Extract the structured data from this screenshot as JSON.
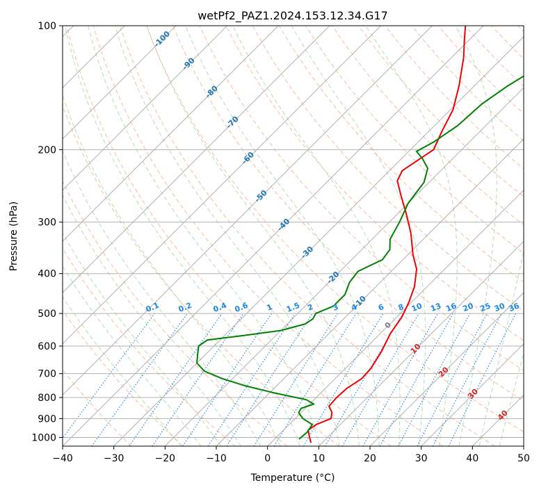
{
  "chart_data": {
    "type": "line",
    "title": "wetPf2_PAZ1.2024.153.12.34.G17",
    "xlabel": "Temperature (°C)",
    "ylabel": "Pressure (hPa)",
    "xlim": [
      -40,
      50
    ],
    "ylim": [
      1050,
      100
    ],
    "y_scale": "log",
    "grid": true,
    "x_ticks": [
      "−40",
      "−30",
      "−20",
      "−10",
      "0",
      "10",
      "20",
      "30",
      "40",
      "50"
    ],
    "y_ticks": [
      {
        "p": 100,
        "label": "100"
      },
      {
        "p": 200,
        "label": "200"
      },
      {
        "p": 300,
        "label": "300"
      },
      {
        "p": 400,
        "label": "400"
      },
      {
        "p": 500,
        "label": "500"
      },
      {
        "p": 600,
        "label": "600"
      },
      {
        "p": 700,
        "label": "700"
      },
      {
        "p": 800,
        "label": "800"
      },
      {
        "p": 900,
        "label": "900"
      },
      {
        "p": 1000,
        "label": "1000"
      }
    ],
    "isotherm_labels": [
      {
        "text": "-100",
        "t": -100,
        "p": 108
      },
      {
        "text": "-90",
        "t": -90,
        "p": 124
      },
      {
        "text": "-80",
        "t": -80,
        "p": 145
      },
      {
        "text": "-70",
        "t": -70,
        "p": 172
      },
      {
        "text": "-60",
        "t": -60,
        "p": 210
      },
      {
        "text": "-50",
        "t": -50,
        "p": 260
      },
      {
        "text": "-40",
        "t": -40,
        "p": 305
      },
      {
        "text": "-30",
        "t": -30,
        "p": 356
      },
      {
        "text": "-20",
        "t": -20,
        "p": 410
      },
      {
        "text": "-10",
        "t": -10,
        "p": 470
      },
      {
        "text": "0",
        "t": 0,
        "p": 535
      },
      {
        "text": "10",
        "t": 10,
        "p": 610
      },
      {
        "text": "20",
        "t": 20,
        "p": 695
      },
      {
        "text": "30",
        "t": 30,
        "p": 785
      },
      {
        "text": "40",
        "t": 40,
        "p": 885
      }
    ],
    "mixing_ratio_labels": [
      "0.1",
      "0.2",
      "0.4",
      "0.6",
      "1",
      "1.5",
      "2",
      "3",
      "4",
      "6",
      "8",
      "10",
      "13",
      "16",
      "20",
      "25",
      "30",
      "36"
    ],
    "colors": {
      "temperature": "#ee0000",
      "dewpoint": "#008000",
      "isotherm_label_cold": "#1f77b4",
      "isotherm_label_warm": "#d62728",
      "mixing_ratio": "#1e88e5",
      "dry_adiabat": "#f4a582",
      "moist_adiabat": "#a6d8a0"
    },
    "series": [
      {
        "values": [
          {
            "p": 1030,
            "t": 7.8
          },
          {
            "p": 1000,
            "t": 6.5
          },
          {
            "p": 960,
            "t": 4.8
          },
          {
            "p": 930,
            "t": 5.3
          },
          {
            "p": 900,
            "t": 7.0
          },
          {
            "p": 870,
            "t": 6.0
          },
          {
            "p": 840,
            "t": 4.2
          },
          {
            "p": 800,
            "t": 4.0
          },
          {
            "p": 760,
            "t": 4.2
          },
          {
            "p": 720,
            "t": 5.2
          },
          {
            "p": 680,
            "t": 5.0
          },
          {
            "p": 620,
            "t": 3.8
          },
          {
            "p": 560,
            "t": 2.0
          },
          {
            "p": 510,
            "t": 1.0
          },
          {
            "p": 470,
            "t": -0.5
          },
          {
            "p": 430,
            "t": -2.5
          },
          {
            "p": 390,
            "t": -5.5
          },
          {
            "p": 360,
            "t": -9.0
          },
          {
            "p": 320,
            "t": -13.5
          },
          {
            "p": 285,
            "t": -18.5
          },
          {
            "p": 258,
            "t": -23.0
          },
          {
            "p": 238,
            "t": -26.5
          },
          {
            "p": 225,
            "t": -27.5
          },
          {
            "p": 212,
            "t": -26.5
          },
          {
            "p": 200,
            "t": -25.5
          },
          {
            "p": 180,
            "t": -27.5
          },
          {
            "p": 160,
            "t": -29.5
          },
          {
            "p": 140,
            "t": -33.0
          },
          {
            "p": 120,
            "t": -37.5
          },
          {
            "p": 108,
            "t": -41.0
          },
          {
            "p": 100,
            "t": -43.5
          }
        ]
      },
      {
        "values": [
          {
            "p": 1010,
            "t": 4.8
          },
          {
            "p": 970,
            "t": 5.0
          },
          {
            "p": 930,
            "t": 4.5
          },
          {
            "p": 900,
            "t": 1.5
          },
          {
            "p": 870,
            "t": -0.5
          },
          {
            "p": 850,
            "t": -0.8
          },
          {
            "p": 830,
            "t": 0.8
          },
          {
            "p": 810,
            "t": -1.5
          },
          {
            "p": 780,
            "t": -9.0
          },
          {
            "p": 750,
            "t": -16.0
          },
          {
            "p": 720,
            "t": -22.0
          },
          {
            "p": 690,
            "t": -27.0
          },
          {
            "p": 660,
            "t": -30.0
          },
          {
            "p": 630,
            "t": -31.5
          },
          {
            "p": 600,
            "t": -33.0
          },
          {
            "p": 580,
            "t": -32.5
          },
          {
            "p": 565,
            "t": -26.0
          },
          {
            "p": 550,
            "t": -20.0
          },
          {
            "p": 530,
            "t": -16.5
          },
          {
            "p": 515,
            "t": -16.0
          },
          {
            "p": 500,
            "t": -16.5
          },
          {
            "p": 480,
            "t": -14.5
          },
          {
            "p": 450,
            "t": -14.5
          },
          {
            "p": 420,
            "t": -16.0
          },
          {
            "p": 395,
            "t": -16.5
          },
          {
            "p": 370,
            "t": -14.0
          },
          {
            "p": 350,
            "t": -14.5
          },
          {
            "p": 330,
            "t": -16.5
          },
          {
            "p": 300,
            "t": -18.0
          },
          {
            "p": 270,
            "t": -20.0
          },
          {
            "p": 240,
            "t": -21.0
          },
          {
            "p": 222,
            "t": -23.0
          },
          {
            "p": 210,
            "t": -26.0
          },
          {
            "p": 202,
            "t": -28.5
          },
          {
            "p": 192,
            "t": -27.0
          },
          {
            "p": 175,
            "t": -25.5
          },
          {
            "p": 155,
            "t": -25.0
          },
          {
            "p": 140,
            "t": -23.5
          },
          {
            "p": 125,
            "t": -21.0
          },
          {
            "p": 110,
            "t": -21.0
          },
          {
            "p": 100,
            "t": -17.0
          }
        ]
      }
    ]
  }
}
